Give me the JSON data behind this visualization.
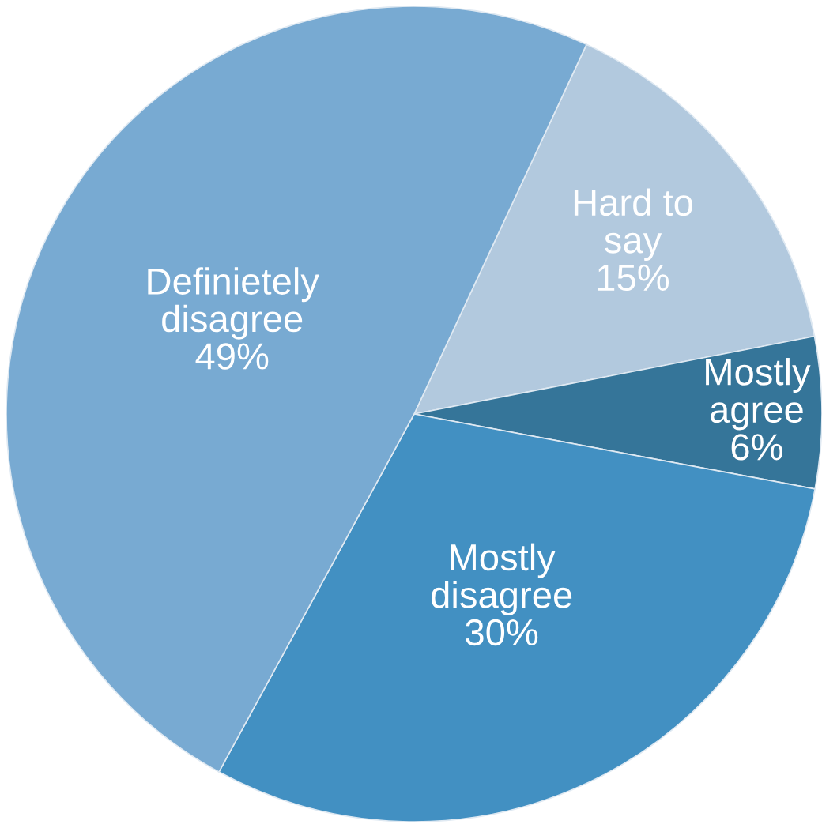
{
  "chart_data": {
    "type": "pie",
    "categories": [
      "Hard to say",
      "Mostly agree",
      "Mostly disagree",
      "Definietely disagree"
    ],
    "values": [
      15,
      6,
      30,
      49
    ],
    "value_labels": [
      "15%",
      "6%",
      "30%",
      "49%"
    ],
    "colors": [
      "#b2c9de",
      "#357599",
      "#4290c2",
      "#78aad2"
    ]
  }
}
